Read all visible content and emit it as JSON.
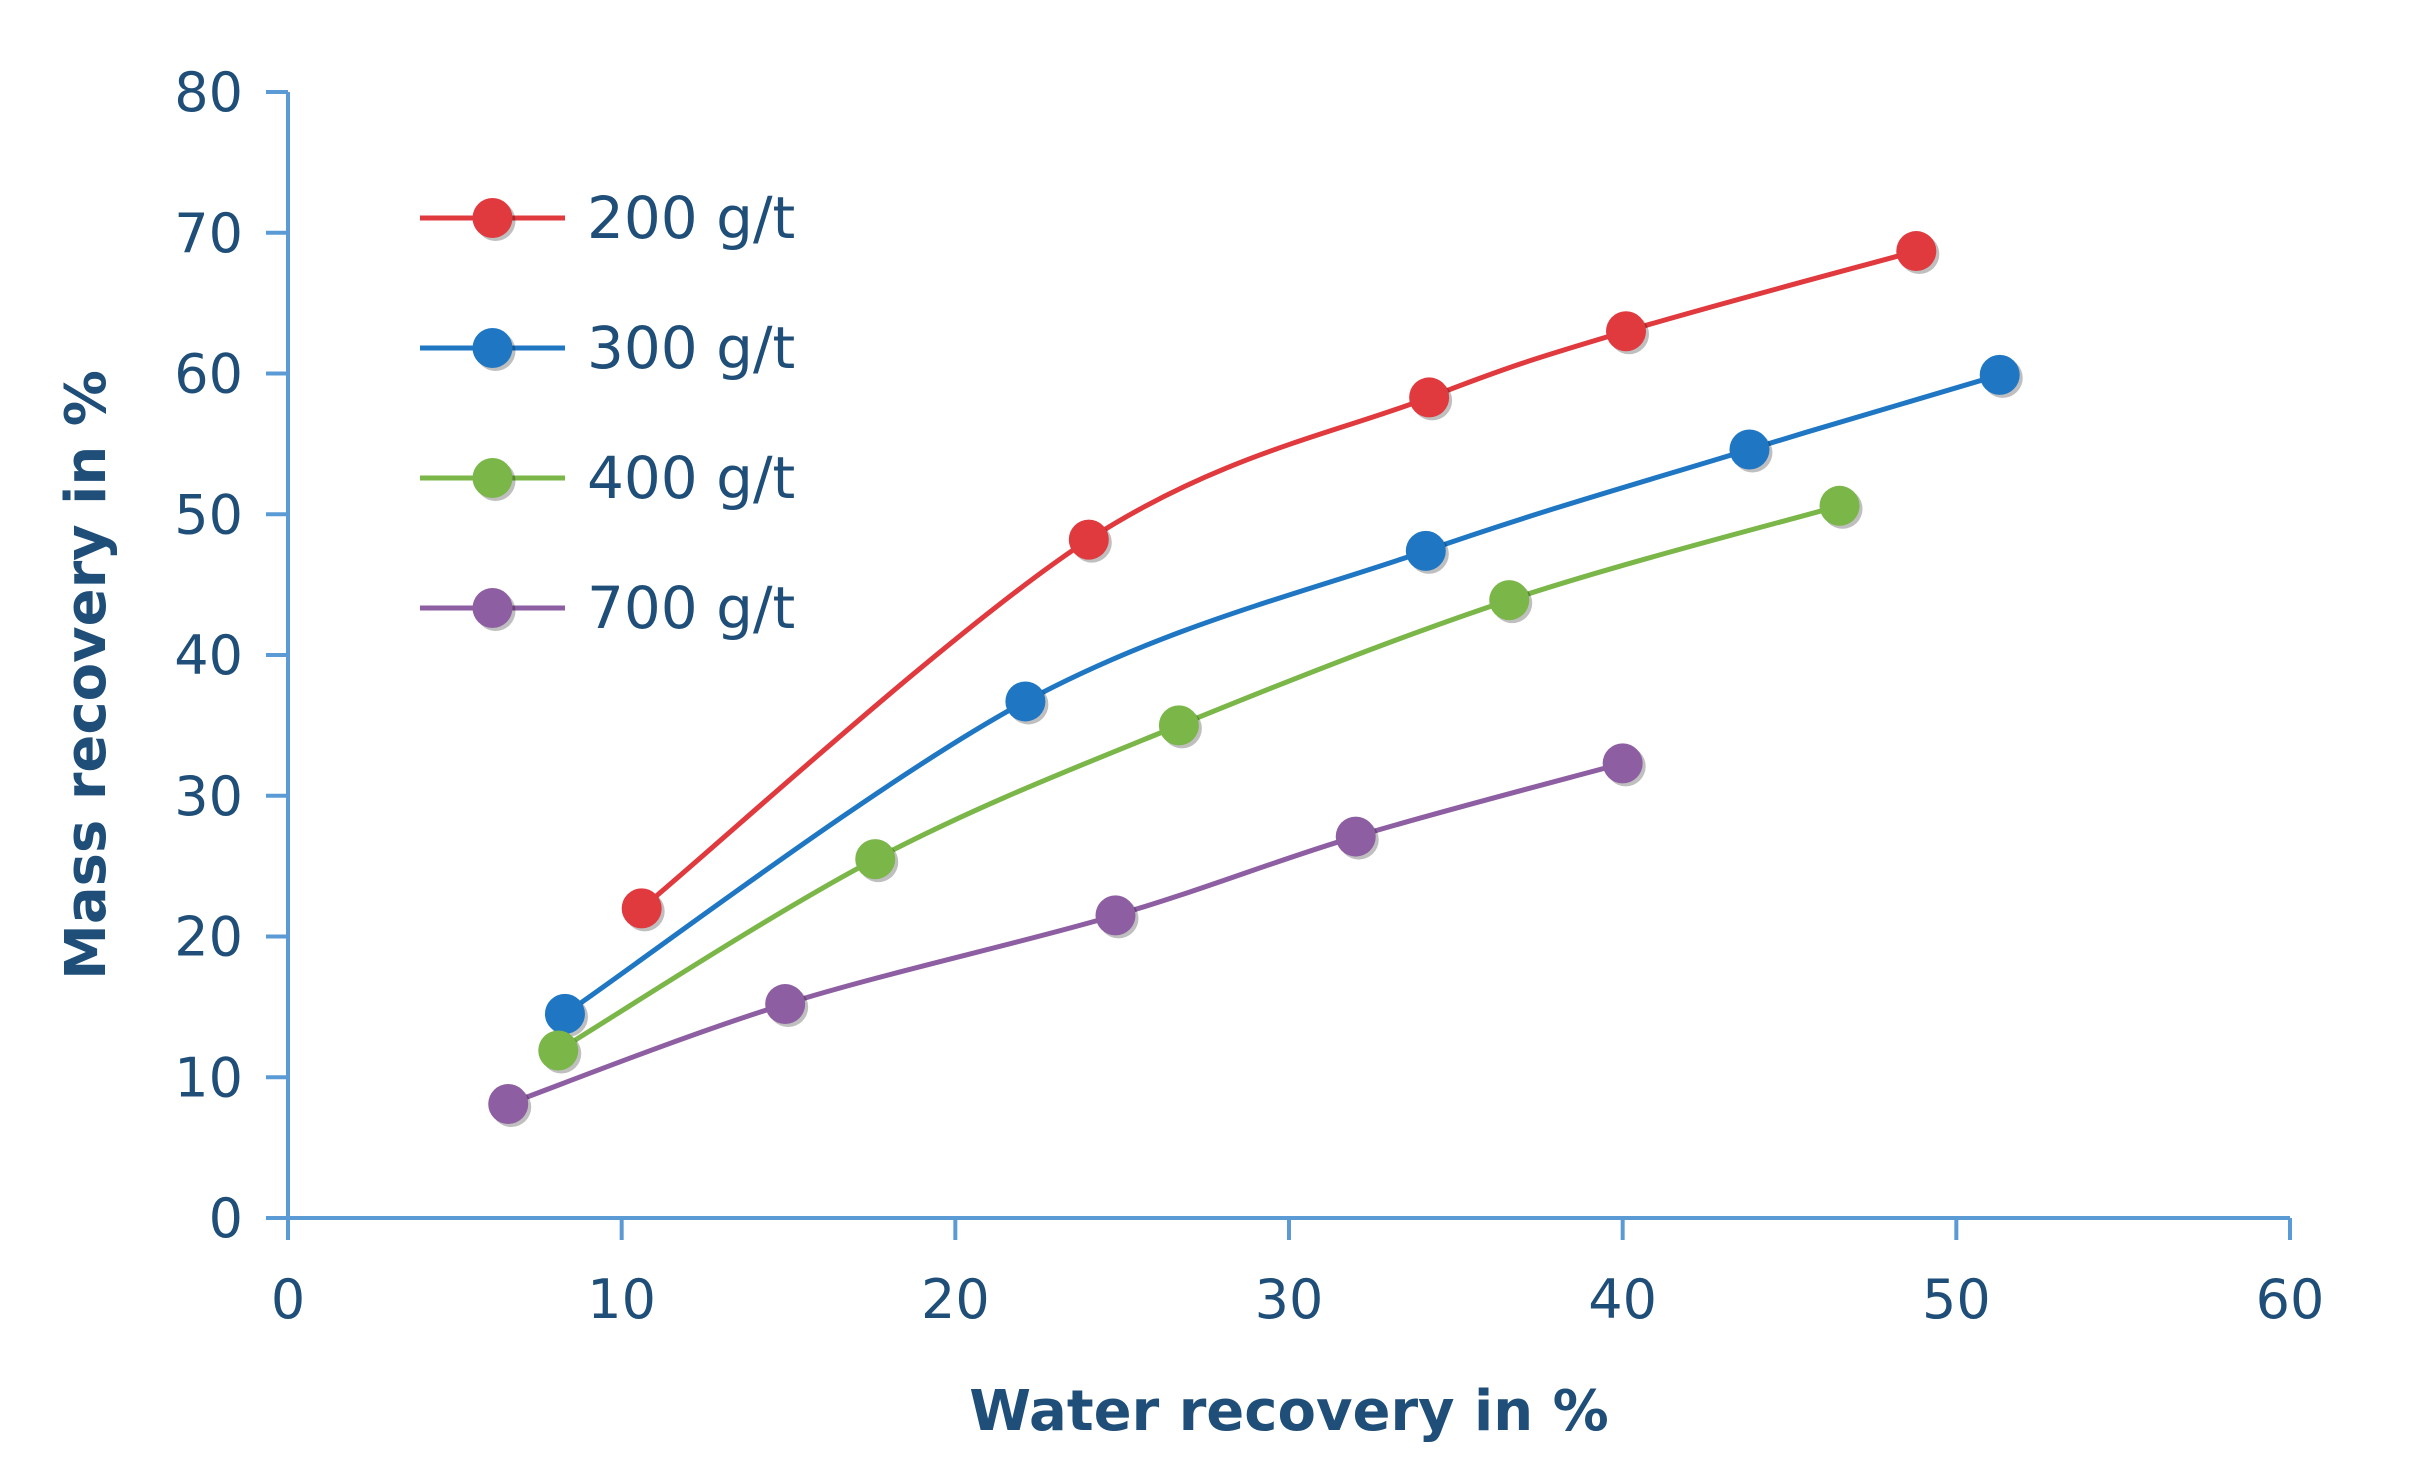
{
  "chart_data": {
    "type": "line",
    "title": "",
    "xlabel": "Water recovery in %",
    "ylabel": "Mass recovery in %",
    "xlim": [
      0,
      60
    ],
    "ylim": [
      0,
      80
    ],
    "xticks": [
      0,
      10,
      20,
      30,
      40,
      50,
      60
    ],
    "yticks": [
      0,
      10,
      20,
      30,
      40,
      50,
      60,
      70,
      80
    ],
    "grid": false,
    "legend_position": "top-left",
    "series": [
      {
        "name": "200 g/t",
        "color": "#e0393e",
        "points": [
          [
            10.6,
            22.0
          ],
          [
            24.0,
            48.2
          ],
          [
            34.2,
            58.3
          ],
          [
            40.1,
            63.0
          ],
          [
            48.8,
            68.7
          ]
        ]
      },
      {
        "name": "300 g/t",
        "color": "#1f77c4",
        "points": [
          [
            8.3,
            14.5
          ],
          [
            22.1,
            36.7
          ],
          [
            34.1,
            47.4
          ],
          [
            43.8,
            54.6
          ],
          [
            51.3,
            59.9
          ]
        ]
      },
      {
        "name": "400 g/t",
        "color": "#7ab648",
        "points": [
          [
            8.1,
            11.9
          ],
          [
            17.6,
            25.5
          ],
          [
            26.7,
            35.0
          ],
          [
            36.6,
            43.9
          ],
          [
            46.5,
            50.6
          ]
        ]
      },
      {
        "name": "700 g/t",
        "color": "#8e5ea2",
        "points": [
          [
            6.6,
            8.1
          ],
          [
            14.9,
            15.2
          ],
          [
            24.8,
            21.5
          ],
          [
            32.0,
            27.1
          ],
          [
            40.0,
            32.3
          ]
        ]
      }
    ]
  }
}
